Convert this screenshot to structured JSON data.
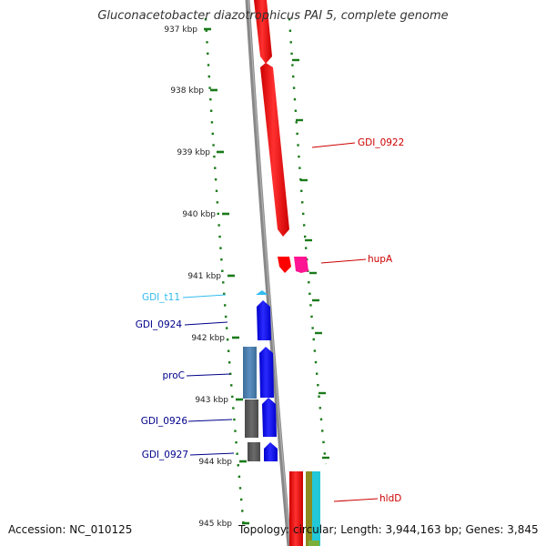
{
  "title": "Gluconacetobacter diazotrophicus PAI 5, complete genome",
  "accession_text": "Accession: NC_010125",
  "summary_text": "Topology: circular; Length: 3,944,163 bp; Genes: 3,845",
  "scale_labels": [
    "937 kbp",
    "938 kbp",
    "939 kbp",
    "940 kbp",
    "941 kbp",
    "942 kbp",
    "943 kbp",
    "944 kbp",
    "945 kbp"
  ],
  "gene_labels": {
    "gdi_0922": "GDI_0922",
    "hupA": "hupA",
    "hldD": "hldD",
    "gdi_t11": "GDI_t11",
    "gdi_0924": "GDI_0924",
    "proC": "proC",
    "gdi_0926": "GDI_0926",
    "gdi_0927": "GDI_0927"
  },
  "colors": {
    "forward_gene": "#ff0000",
    "forward_gene_2": "#ff1493",
    "reverse_gene": "#0000ff",
    "reverse_trna": "#33bbee",
    "reverse_label": "#00008b",
    "forward_label": "#cc0000",
    "tick": "#1a7a1a",
    "backbone": "#888888"
  }
}
